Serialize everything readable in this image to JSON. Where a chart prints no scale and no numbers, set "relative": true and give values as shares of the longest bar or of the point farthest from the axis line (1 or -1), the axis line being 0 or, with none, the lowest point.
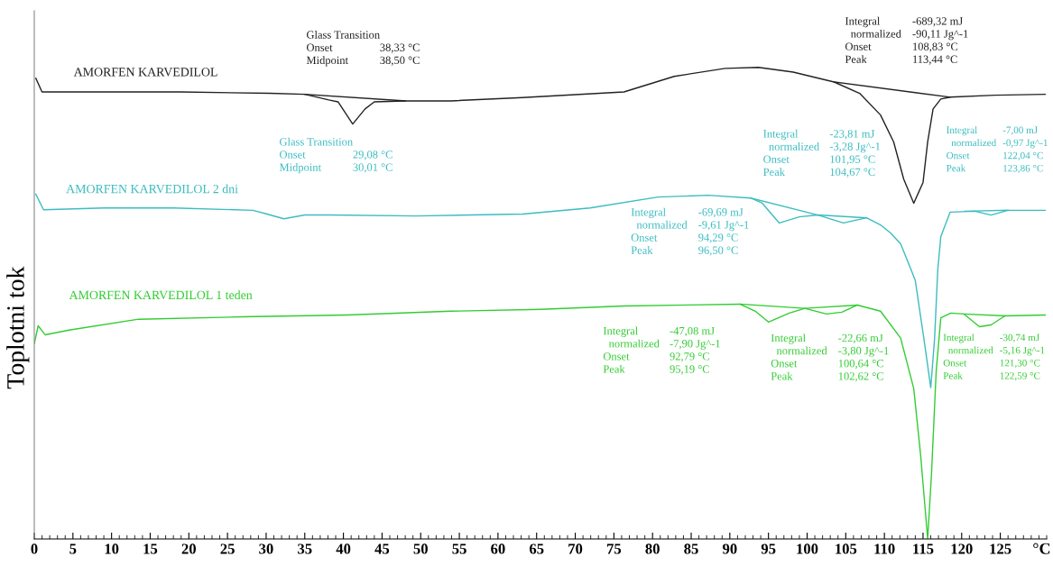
{
  "chart_data": {
    "type": "line",
    "relative": true,
    "xlabel": "°C",
    "ylabel": "Toplotni tok",
    "xlim": [
      0,
      131
    ],
    "xticks": [
      0,
      5,
      10,
      15,
      20,
      25,
      30,
      35,
      40,
      45,
      50,
      55,
      60,
      65,
      70,
      75,
      80,
      85,
      90,
      95,
      100,
      105,
      110,
      115,
      120,
      125
    ],
    "grid": false,
    "legend": false,
    "line_style": "solid",
    "series": [
      {
        "name": "AMORFEN KARVEDILOL",
        "color": "#222222",
        "x": [
          0.2,
          1.0,
          2.6,
          18.9,
          30.5,
          35.0,
          38.1,
          39.3,
          41.2,
          42.8,
          44.0,
          48.0,
          53.9,
          63.2,
          76.3,
          82.8,
          89.4,
          93.7,
          98.2,
          103.5,
          106.8,
          109.5,
          111.2,
          112.5,
          113.8,
          115.0,
          115.6,
          116.3,
          117.3,
          118.5,
          124.3,
          130.8
        ],
        "values": [
          0.977,
          0.948,
          0.948,
          0.948,
          0.945,
          0.943,
          0.931,
          0.927,
          0.88,
          0.912,
          0.927,
          0.929,
          0.929,
          0.936,
          0.948,
          0.981,
          0.998,
          1.0,
          0.99,
          0.969,
          0.945,
          0.899,
          0.842,
          0.763,
          0.712,
          0.756,
          0.842,
          0.912,
          0.933,
          0.937,
          0.941,
          0.943
        ]
      },
      {
        "name": "AMORFEN KARVEDILOL 2 dni",
        "color": "#3cbcc0",
        "x": [
          0.2,
          1.2,
          9.0,
          18.0,
          28.3,
          30.1,
          32.3,
          35.0,
          38.1,
          49.4,
          63.2,
          71.9,
          80.7,
          87.2,
          92.7,
          94.2,
          96.4,
          99.0,
          101.4,
          104.7,
          107.7,
          109.5,
          110.8,
          112.1,
          113.5,
          114.0,
          115.1,
          116.0,
          116.5,
          116.9,
          117.3,
          118.5,
          121.7,
          123.8,
          126.0,
          130.8
        ],
        "values": [
          0.731,
          0.698,
          0.702,
          0.702,
          0.697,
          0.689,
          0.679,
          0.687,
          0.687,
          0.685,
          0.689,
          0.702,
          0.725,
          0.729,
          0.723,
          0.712,
          0.67,
          0.683,
          0.687,
          0.67,
          0.681,
          0.666,
          0.649,
          0.626,
          0.569,
          0.548,
          0.426,
          0.321,
          0.426,
          0.569,
          0.641,
          0.693,
          0.695,
          0.687,
          0.697,
          0.697
        ]
      },
      {
        "name": "AMORFEN KARVEDILOL 1 teden",
        "color": "#33cc33",
        "x": [
          0.0,
          0.5,
          1.4,
          4.5,
          13.5,
          26.9,
          40.5,
          53.9,
          65.5,
          76.3,
          91.3,
          93.3,
          95.0,
          97.7,
          99.7,
          102.5,
          104.5,
          106.5,
          109.5,
          112.1,
          113.8,
          114.7,
          115.6,
          116.1,
          116.7,
          117.3,
          118.6,
          120.3,
          122.3,
          123.8,
          125.6,
          130.8
        ],
        "values": [
          0.414,
          0.452,
          0.433,
          0.443,
          0.466,
          0.471,
          0.475,
          0.483,
          0.487,
          0.494,
          0.498,
          0.483,
          0.46,
          0.479,
          0.489,
          0.477,
          0.481,
          0.496,
          0.483,
          0.426,
          0.319,
          0.176,
          0.0,
          0.139,
          0.355,
          0.469,
          0.479,
          0.477,
          0.45,
          0.454,
          0.473,
          0.475
        ]
      },
      {
        "color": "#222222",
        "x": [
          35.0,
          48.0
        ],
        "values": [
          0.943,
          0.929
        ]
      },
      {
        "color": "#222222",
        "x": [
          103.5,
          118.5
        ],
        "values": [
          0.969,
          0.937
        ]
      },
      {
        "color": "#3cbcc0",
        "x": [
          92.7,
          101.4,
          107.7
        ],
        "values": [
          0.723,
          0.687,
          0.681
        ]
      },
      {
        "color": "#3cbcc0",
        "x": [
          120.4,
          126.0
        ],
        "values": [
          0.695,
          0.697
        ]
      },
      {
        "color": "#33cc33",
        "x": [
          91.3,
          99.7,
          106.5
        ],
        "values": [
          0.498,
          0.489,
          0.496
        ]
      },
      {
        "color": "#33cc33",
        "x": [
          120.3,
          125.6
        ],
        "values": [
          0.477,
          0.473
        ]
      }
    ],
    "annotations": [
      "Glass Transition\nOnset\t38,33 °C\nMidpoint\t38,50 °C",
      "Integral\t-689,32 mJ\n  normalized\t-90,11 Jg^-1\nOnset\t108,83 °C\nPeak\t113,44 °C",
      "Glass Transition\nOnset\t29,08 °C\nMidpoint\t30,01 °C",
      "Integral\t-23,81 mJ\n  normalized\t-3,28 Jg^-1\nOnset\t101,95 °C\nPeak\t104,67 °C",
      "Integral\t-7,00 mJ\n  normalized\t-0,97 Jg^-1\nOnset\t122,04 °C\nPeak\t123,86 °C",
      "Integral\t-69,69 mJ\n  normalized\t-9,61 Jg^-1\nOnset\t94,29 °C\nPeak\t96,50 °C",
      "Integral\t-47,08 mJ\n  normalized\t-7,90 Jg^-1\nOnset\t92,79 °C\nPeak\t95,19 °C",
      "Integral\t-22,66 mJ\n  normalized\t-3,80 Jg^-1\nOnset\t100,64 °C\nPeak\t102,62 °C",
      "Integral\t-30,74 mJ\n  normalized\t-5,16 Jg^-1\nOnset\t121,30 °C\nPeak\t122,59 °C"
    ]
  }
}
